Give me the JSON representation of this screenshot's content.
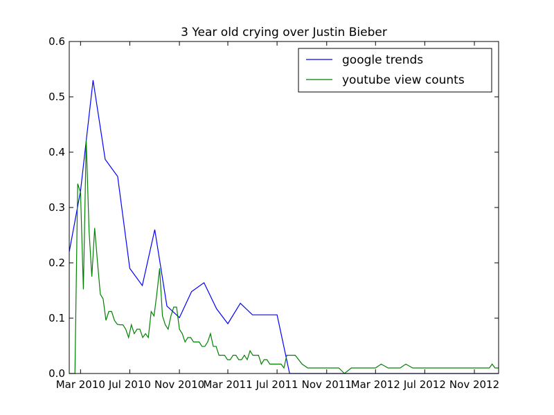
{
  "chart_data": {
    "type": "line",
    "title": "3 Year old crying over Justin Bieber",
    "xlabel": "",
    "ylabel": "",
    "ylim": [
      0,
      0.6
    ],
    "xlim": [
      "2010-02-01",
      "2012-12-31"
    ],
    "x_ticks": [
      "Mar 2010",
      "Jul 2010",
      "Nov 2010",
      "Mar 2011",
      "Jul 2011",
      "Nov 2011",
      "Mar 2012",
      "Jul 2012",
      "Nov 2012"
    ],
    "y_ticks": [
      "0.0",
      "0.1",
      "0.2",
      "0.3",
      "0.4",
      "0.5",
      "0.6"
    ],
    "grid": false,
    "legend_position": "top-right",
    "series": [
      {
        "name": "google trends",
        "color": "#0000ff",
        "x": [
          "2010-02-01",
          "2010-03-01",
          "2010-04-01",
          "2010-05-01",
          "2010-06-01",
          "2010-07-01",
          "2010-08-01",
          "2010-09-01",
          "2010-10-01",
          "2010-11-01",
          "2010-12-01",
          "2011-01-01",
          "2011-02-01",
          "2011-03-01",
          "2011-04-01",
          "2011-05-01",
          "2011-06-01",
          "2011-07-01",
          "2011-08-01",
          "2011-09-01",
          "2011-10-01",
          "2011-11-01",
          "2011-12-01",
          "2012-01-01",
          "2012-02-01",
          "2012-03-01",
          "2012-04-01",
          "2012-05-01",
          "2012-06-01",
          "2012-07-01",
          "2012-08-01",
          "2012-09-01",
          "2012-10-01",
          "2012-11-01",
          "2012-12-01",
          "2012-12-31"
        ],
        "values": [
          0.22,
          0.33,
          0.53,
          0.387,
          0.356,
          0.19,
          0.159,
          0.26,
          0.122,
          0.101,
          0.148,
          0.164,
          0.117,
          0.09,
          0.127,
          0.106,
          0.106,
          0.106,
          0.0,
          0.0,
          0.0,
          0.0,
          0.0,
          0.0,
          0.0,
          0.0,
          0.0,
          0.0,
          0.0,
          0.0,
          0.0,
          0.0,
          0.0,
          0.0,
          0.0,
          0.0
        ]
      },
      {
        "name": "youtube view counts",
        "color": "#008000",
        "x": [
          "2010-02-01",
          "2010-02-15",
          "2010-02-22",
          "2010-03-01",
          "2010-03-08",
          "2010-03-15",
          "2010-03-22",
          "2010-03-29",
          "2010-04-05",
          "2010-04-12",
          "2010-04-19",
          "2010-04-26",
          "2010-05-03",
          "2010-05-10",
          "2010-05-17",
          "2010-05-24",
          "2010-05-31",
          "2010-06-07",
          "2010-06-14",
          "2010-06-21",
          "2010-06-28",
          "2010-07-05",
          "2010-07-12",
          "2010-07-19",
          "2010-07-26",
          "2010-08-02",
          "2010-08-09",
          "2010-08-16",
          "2010-08-23",
          "2010-08-30",
          "2010-09-06",
          "2010-09-13",
          "2010-09-20",
          "2010-09-27",
          "2010-10-04",
          "2010-10-11",
          "2010-10-18",
          "2010-10-25",
          "2010-11-01",
          "2010-11-08",
          "2010-11-15",
          "2010-11-22",
          "2010-11-29",
          "2010-12-06",
          "2010-12-13",
          "2010-12-20",
          "2010-12-27",
          "2011-01-03",
          "2011-01-10",
          "2011-01-17",
          "2011-01-24",
          "2011-01-31",
          "2011-02-07",
          "2011-02-14",
          "2011-02-21",
          "2011-02-28",
          "2011-03-07",
          "2011-03-14",
          "2011-03-21",
          "2011-03-28",
          "2011-04-04",
          "2011-04-11",
          "2011-04-18",
          "2011-04-25",
          "2011-05-02",
          "2011-05-09",
          "2011-05-16",
          "2011-05-23",
          "2011-05-30",
          "2011-06-06",
          "2011-06-13",
          "2011-06-20",
          "2011-06-27",
          "2011-07-04",
          "2011-07-11",
          "2011-07-18",
          "2011-07-25",
          "2011-08-01",
          "2011-08-15",
          "2011-09-01",
          "2011-09-15",
          "2011-10-01",
          "2011-10-15",
          "2011-11-01",
          "2011-11-15",
          "2011-12-01",
          "2011-12-15",
          "2012-01-01",
          "2012-01-15",
          "2012-02-01",
          "2012-02-15",
          "2012-03-01",
          "2012-03-15",
          "2012-04-01",
          "2012-04-15",
          "2012-05-01",
          "2012-05-15",
          "2012-06-01",
          "2012-06-15",
          "2012-07-01",
          "2012-07-15",
          "2012-08-01",
          "2012-08-15",
          "2012-09-01",
          "2012-09-15",
          "2012-10-01",
          "2012-10-08",
          "2012-10-15",
          "2012-11-01",
          "2012-11-15",
          "2012-12-01",
          "2012-12-08",
          "2012-12-15",
          "2012-12-22",
          "2012-12-31"
        ],
        "values": [
          0.0,
          0.0,
          0.343,
          0.327,
          0.152,
          0.422,
          0.258,
          0.175,
          0.263,
          0.201,
          0.143,
          0.135,
          0.096,
          0.112,
          0.112,
          0.096,
          0.089,
          0.088,
          0.088,
          0.08,
          0.065,
          0.088,
          0.072,
          0.08,
          0.08,
          0.065,
          0.072,
          0.065,
          0.112,
          0.104,
          0.143,
          0.19,
          0.104,
          0.088,
          0.08,
          0.104,
          0.12,
          0.12,
          0.08,
          0.072,
          0.057,
          0.065,
          0.065,
          0.057,
          0.057,
          0.057,
          0.049,
          0.049,
          0.057,
          0.072,
          0.049,
          0.049,
          0.033,
          0.033,
          0.033,
          0.025,
          0.025,
          0.033,
          0.033,
          0.025,
          0.025,
          0.033,
          0.025,
          0.041,
          0.033,
          0.033,
          0.033,
          0.017,
          0.025,
          0.025,
          0.017,
          0.017,
          0.017,
          0.017,
          0.017,
          0.01,
          0.033,
          0.033,
          0.033,
          0.017,
          0.01,
          0.01,
          0.01,
          0.01,
          0.01,
          0.01,
          0.0,
          0.01,
          0.01,
          0.01,
          0.01,
          0.01,
          0.017,
          0.01,
          0.01,
          0.01,
          0.017,
          0.01,
          0.01,
          0.01,
          0.01,
          0.01,
          0.01,
          0.01,
          0.01,
          0.01,
          0.01,
          0.01,
          0.01,
          0.01,
          0.01,
          0.01,
          0.017,
          0.01,
          0.01
        ]
      }
    ]
  }
}
